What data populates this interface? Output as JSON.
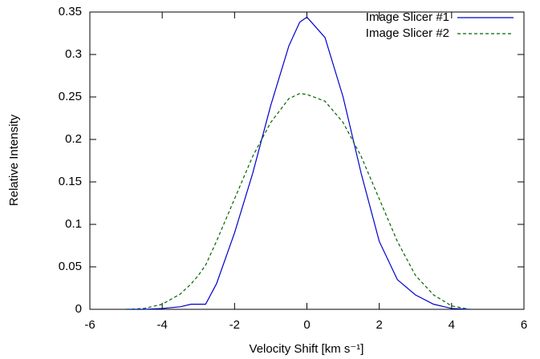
{
  "chart_data": {
    "type": "line",
    "xlabel": "Velocity Shift [km s⁻¹]",
    "ylabel": "Relative Intensity",
    "x": [
      -5,
      -4.5,
      -4,
      -3.5,
      -3.2,
      -3,
      -2.8,
      -2.5,
      -2,
      -1.5,
      -1,
      -0.5,
      -0.2,
      0,
      0.5,
      1,
      1.5,
      2,
      2.5,
      3,
      3.5,
      4,
      4.5
    ],
    "series": [
      {
        "name": "Image Slicer #1",
        "color": "#0000cc",
        "dash": false,
        "values": [
          0,
          0,
          0.001,
          0.003,
          0.006,
          0.006,
          0.006,
          0.03,
          0.09,
          0.16,
          0.24,
          0.31,
          0.338,
          0.344,
          0.32,
          0.25,
          0.16,
          0.08,
          0.035,
          0.017,
          0.006,
          0.001,
          0
        ]
      },
      {
        "name": "Image Slicer #2",
        "color": "#006400",
        "dash": true,
        "values": [
          0,
          0.001,
          0.006,
          0.018,
          0.03,
          0.04,
          0.052,
          0.08,
          0.13,
          0.18,
          0.22,
          0.248,
          0.254,
          0.253,
          0.245,
          0.22,
          0.18,
          0.13,
          0.08,
          0.04,
          0.017,
          0.004,
          0
        ]
      }
    ],
    "xlim": [
      -6,
      6
    ],
    "xticks": [
      -6,
      -4,
      -2,
      0,
      2,
      4,
      6
    ],
    "ylim": [
      0,
      0.35
    ],
    "yticks": [
      0,
      0.05,
      0.1,
      0.15,
      0.2,
      0.25,
      0.3,
      0.35
    ],
    "legend": "top-right",
    "grid": false
  }
}
